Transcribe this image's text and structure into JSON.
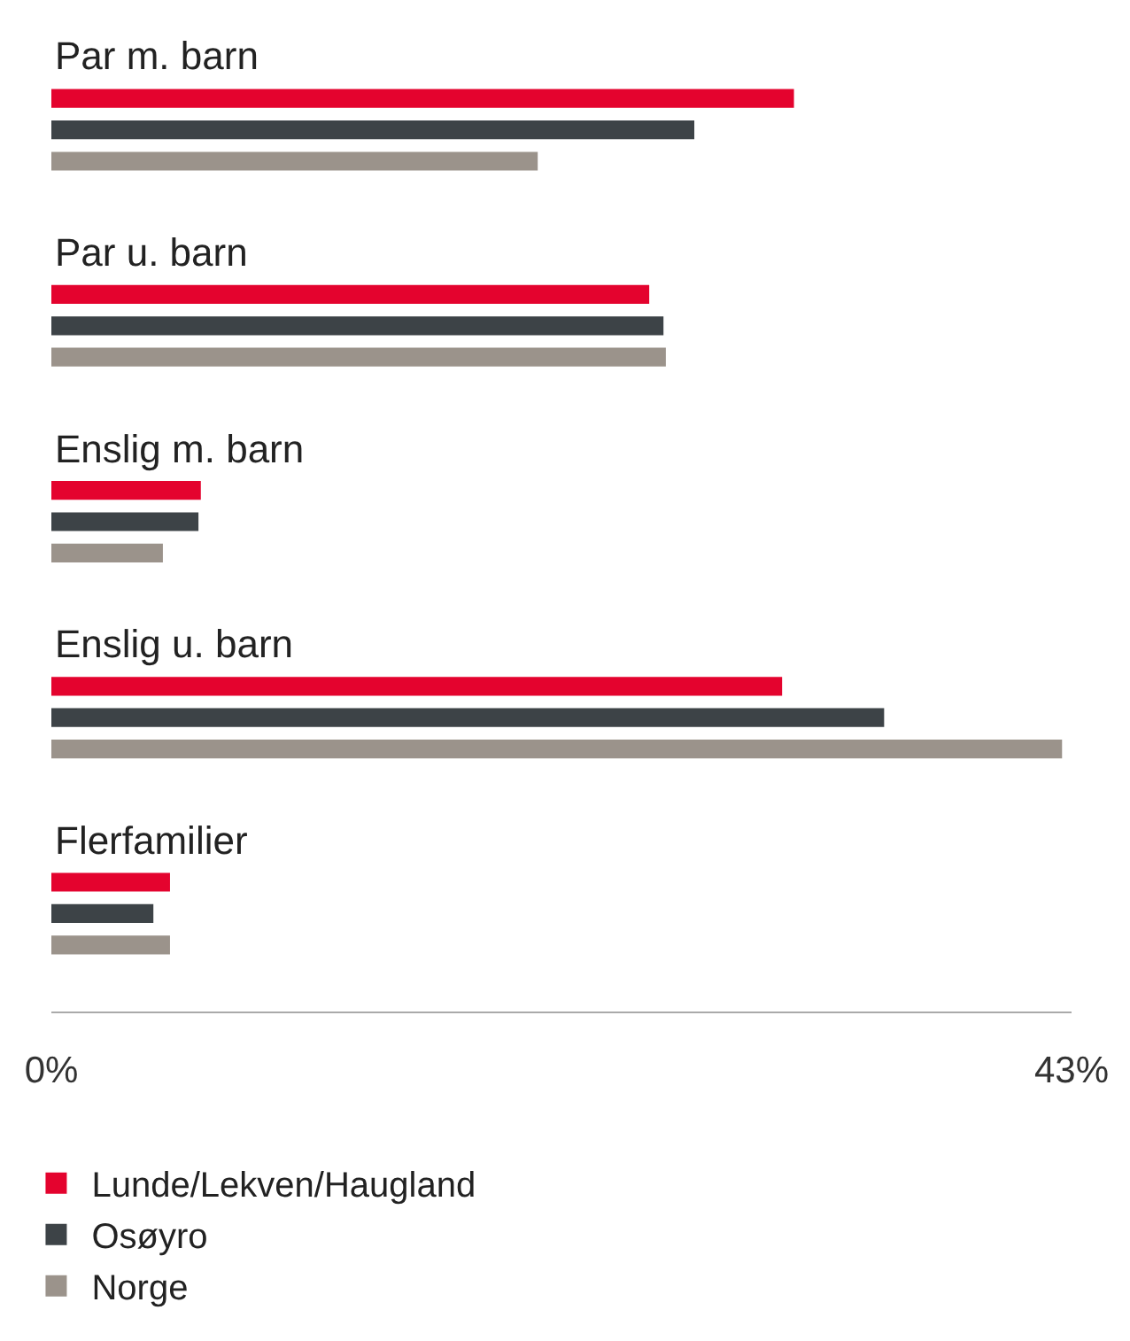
{
  "chart_data": {
    "type": "bar",
    "orientation": "horizontal",
    "categories": [
      "Par m. barn",
      "Par u. barn",
      "Enslig m. barn",
      "Enslig u. barn",
      "Flerfamilier"
    ],
    "series": [
      {
        "name": "Lunde/Lekven/Haugland",
        "color": "#e4032e",
        "values": [
          31.3,
          25.2,
          6.3,
          30.8,
          5.0
        ]
      },
      {
        "name": "Osøyro",
        "color": "#3d4347",
        "values": [
          27.1,
          25.8,
          6.2,
          35.1,
          4.3
        ]
      },
      {
        "name": "Norge",
        "color": "#9b938b",
        "values": [
          20.5,
          25.9,
          4.7,
          42.6,
          5.0
        ]
      }
    ],
    "xlim": [
      0,
      43
    ],
    "xticks": [
      {
        "value": 0,
        "label": "0%"
      },
      {
        "value": 43,
        "label": "43%"
      }
    ],
    "legend": "bottom left"
  }
}
